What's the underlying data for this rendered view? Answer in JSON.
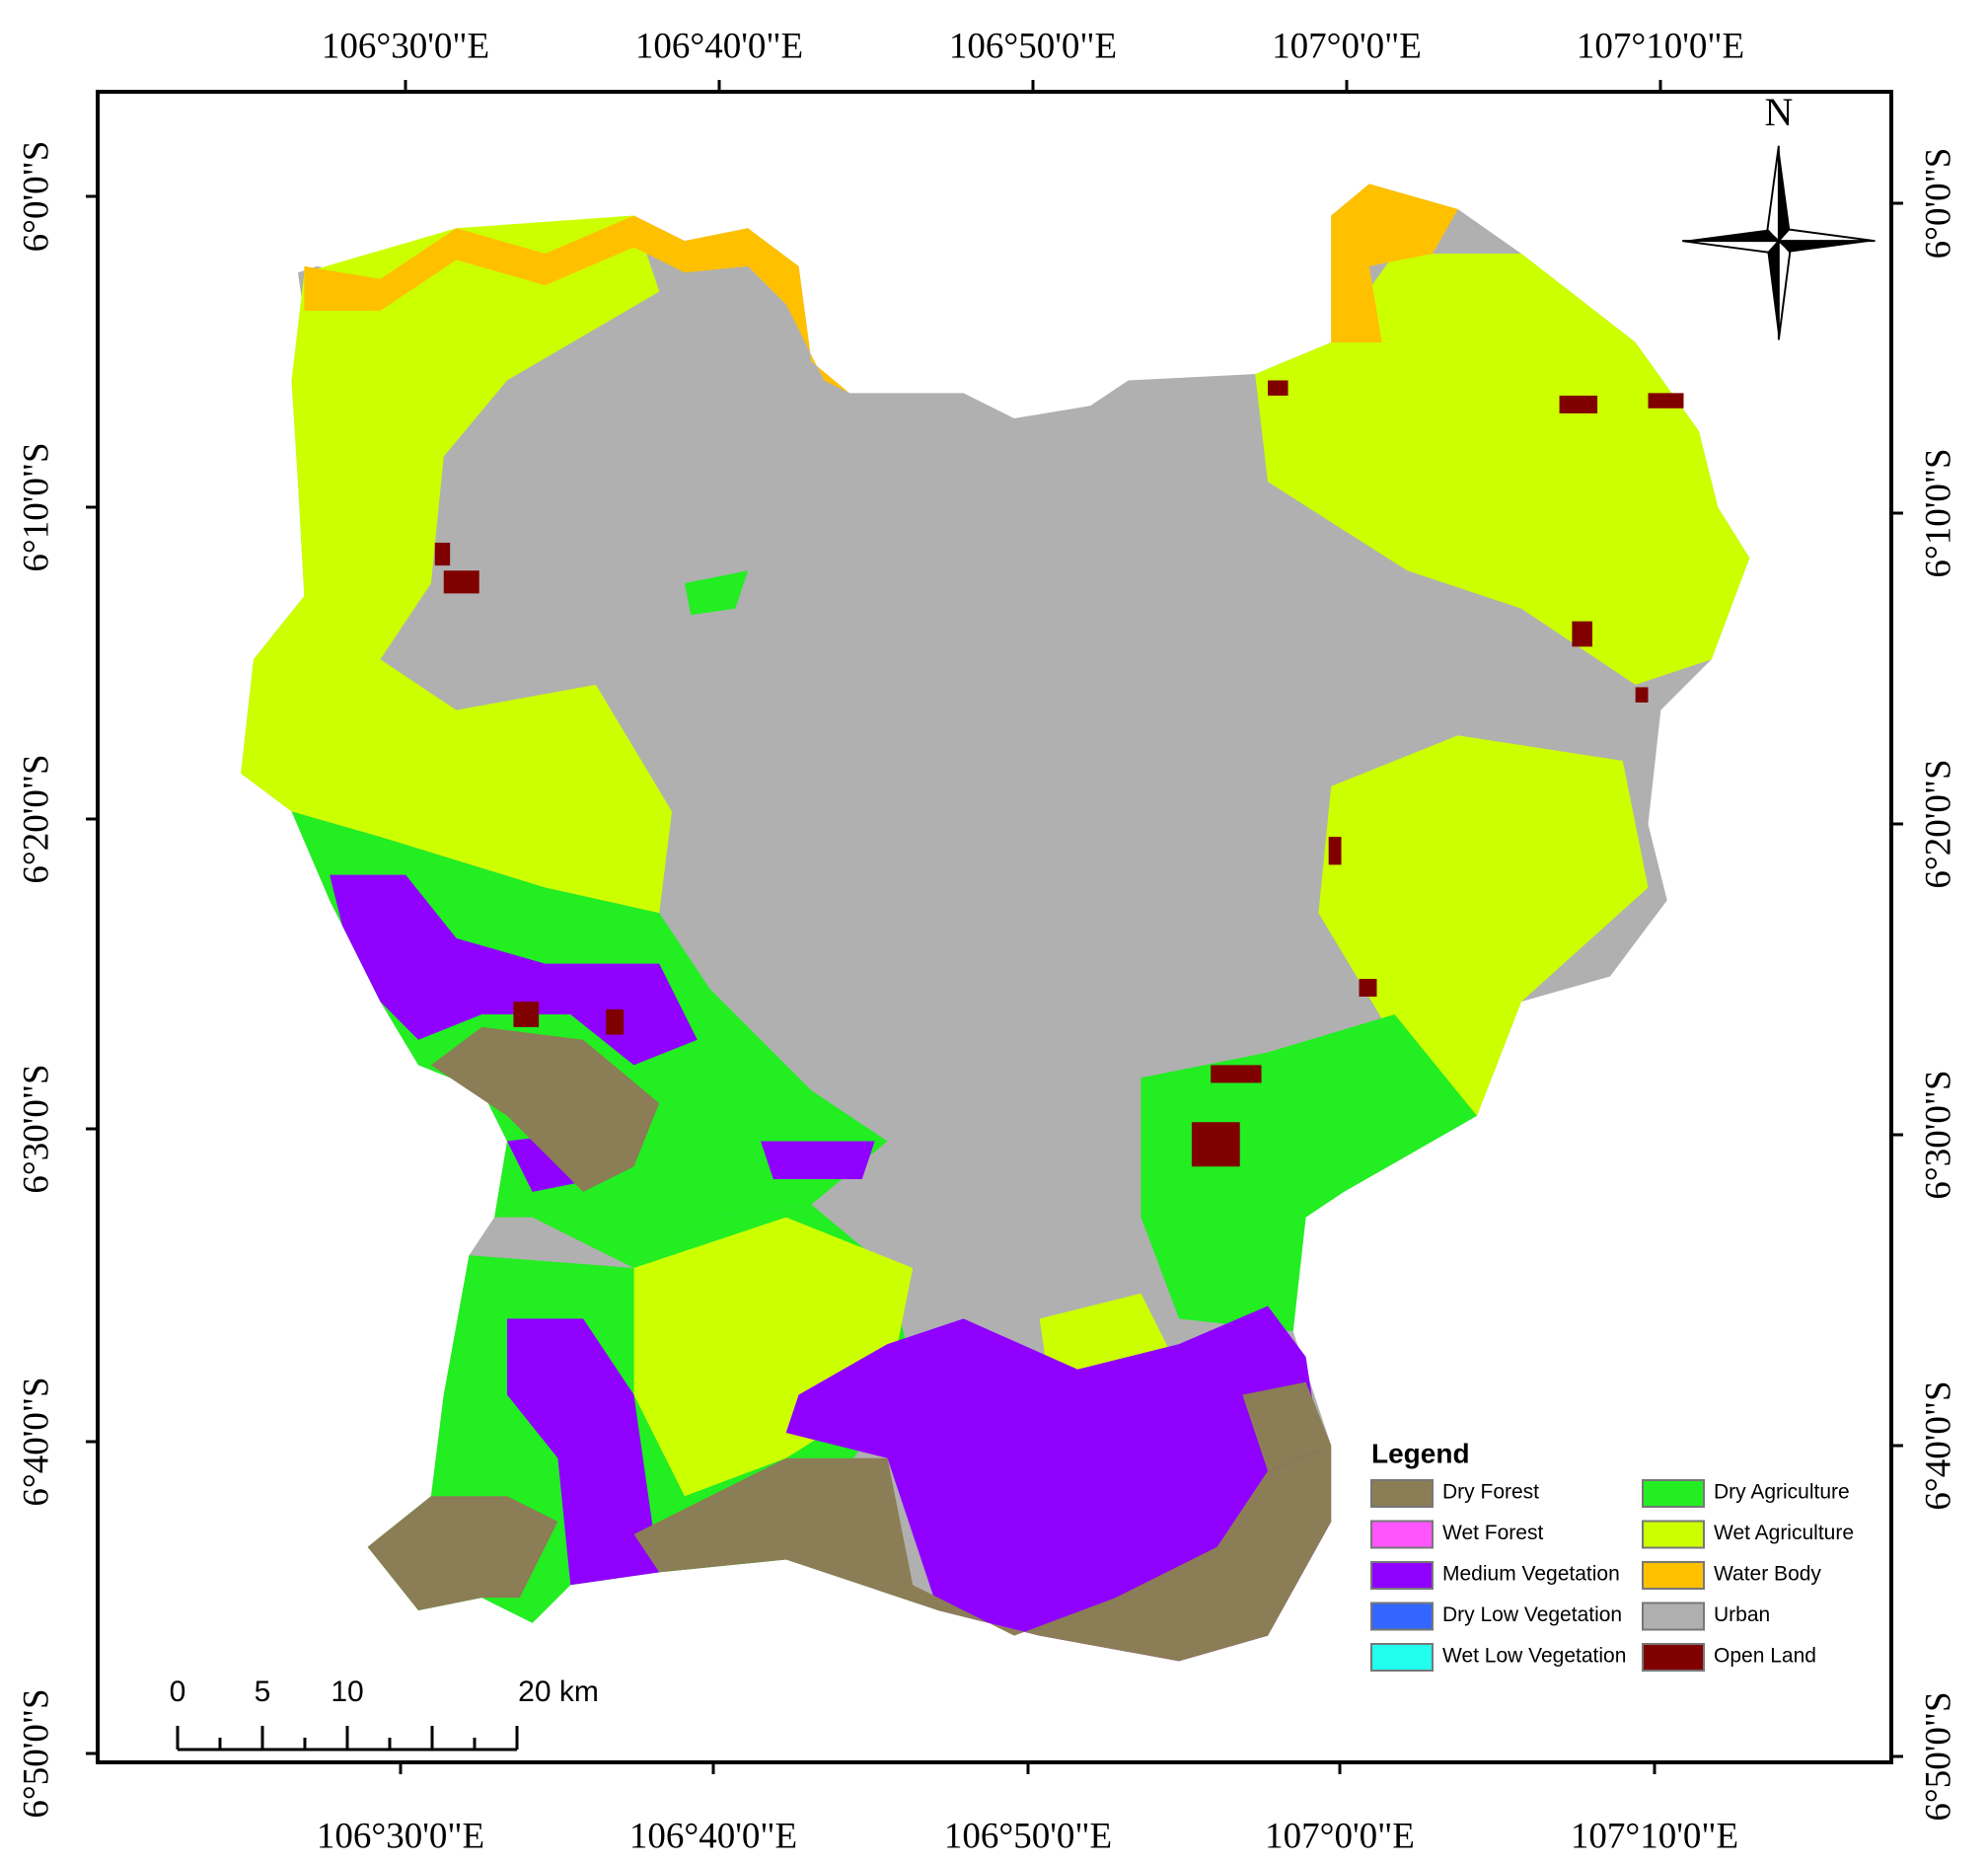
{
  "map": {
    "top_labels": [
      "106°30'0\"E",
      "106°40'0\"E",
      "106°50'0\"E",
      "107°0'0\"E",
      "107°10'0\"E"
    ],
    "bottom_labels": [
      "106°30'0\"E",
      "106°40'0\"E",
      "106°50'0\"E",
      "107°0'0\"E",
      "107°10'0\"E"
    ],
    "left_labels": [
      "6°0'0\"S",
      "6°10'0\"S",
      "6°20'0\"S",
      "6°30'0\"S",
      "6°40'0\"S",
      "6°50'0\"S"
    ],
    "right_labels": [
      "6°0'0\"S",
      "6°10'0\"S",
      "6°20'0\"S",
      "6°30'0\"S",
      "6°40'0\"S",
      "6°50'0\"S"
    ],
    "north": "N",
    "legend": {
      "title": "Legend",
      "items": [
        {
          "label": "Dry Forest",
          "color": "#8b7d55"
        },
        {
          "label": "Wet Forest",
          "color": "#ff55ff"
        },
        {
          "label": "Medium Vegetation",
          "color": "#9000ff"
        },
        {
          "label": "Dry Low Vegetation",
          "color": "#3366ff"
        },
        {
          "label": "Wet Low Vegetation",
          "color": "#22ffee"
        },
        {
          "label": "Dry Agriculture",
          "color": "#22ee22"
        },
        {
          "label": "Wet Agriculture",
          "color": "#ccff00"
        },
        {
          "label": "Water Body",
          "color": "#ffc000"
        },
        {
          "label": "Urban",
          "color": "#b0b0b0"
        },
        {
          "label": "Open Land",
          "color": "#800000"
        }
      ]
    },
    "scale_bar": {
      "labels": [
        "0",
        "5",
        "10",
        "20 km"
      ]
    }
  }
}
